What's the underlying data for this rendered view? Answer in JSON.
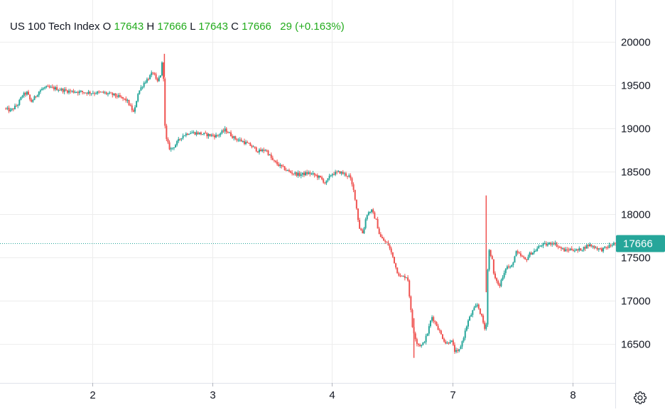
{
  "legend": {
    "symbol": "US 100 Tech Index",
    "open_label": "O",
    "open": "17643",
    "high_label": "H",
    "high": "17666",
    "low_label": "L",
    "low": "17643",
    "close_label": "C",
    "close": "17666",
    "change": "29",
    "change_pct": "(+0.163%)"
  },
  "last_price_label": "17666",
  "icons": {
    "settings": "gear-icon"
  },
  "colors": {
    "up": "#26a69a",
    "down": "#ef5350",
    "legend_value": "#22ab1c",
    "grid": "#ededed",
    "price_tag": "#26a69a"
  },
  "chart_data": {
    "type": "candlestick",
    "ylim": [
      16050,
      20450
    ],
    "y_ticks": [
      20000,
      19500,
      19000,
      18500,
      18000,
      17500,
      17000,
      16500
    ],
    "y_tick_labels": [
      "20000",
      "19500",
      "19000",
      "18500",
      "18000",
      "17500",
      "17000",
      "16500"
    ],
    "x_ticks": [
      {
        "label": "2",
        "at": 1.0
      },
      {
        "label": "3",
        "at": 2.0
      },
      {
        "label": "4",
        "at": 3.0
      },
      {
        "label": "7",
        "at": 4.0
      },
      {
        "label": "8",
        "at": 5.0
      }
    ],
    "x_range": [
      0.28,
      5.36
    ],
    "last_price": 17666,
    "price_path": [
      [
        0.28,
        19230
      ],
      [
        0.33,
        19200
      ],
      [
        0.39,
        19270
      ],
      [
        0.43,
        19380
      ],
      [
        0.47,
        19410
      ],
      [
        0.5,
        19300
      ],
      [
        0.53,
        19350
      ],
      [
        0.57,
        19430
      ],
      [
        0.62,
        19470
      ],
      [
        0.7,
        19460
      ],
      [
        0.8,
        19430
      ],
      [
        0.9,
        19420
      ],
      [
        1.0,
        19410
      ],
      [
        1.1,
        19410
      ],
      [
        1.2,
        19380
      ],
      [
        1.3,
        19320
      ],
      [
        1.36,
        19170
      ],
      [
        1.39,
        19400
      ],
      [
        1.44,
        19520
      ],
      [
        1.48,
        19580
      ],
      [
        1.52,
        19650
      ],
      [
        1.55,
        19520
      ],
      [
        1.58,
        19620
      ],
      [
        1.6,
        19820
      ],
      [
        1.62,
        18900
      ],
      [
        1.66,
        18750
      ],
      [
        1.7,
        18800
      ],
      [
        1.76,
        18910
      ],
      [
        1.82,
        18950
      ],
      [
        1.9,
        18940
      ],
      [
        1.98,
        18920
      ],
      [
        2.05,
        18910
      ],
      [
        2.12,
        18980
      ],
      [
        2.2,
        18880
      ],
      [
        2.26,
        18850
      ],
      [
        2.33,
        18800
      ],
      [
        2.4,
        18730
      ],
      [
        2.46,
        18750
      ],
      [
        2.52,
        18620
      ],
      [
        2.58,
        18560
      ],
      [
        2.66,
        18490
      ],
      [
        2.74,
        18460
      ],
      [
        2.82,
        18480
      ],
      [
        2.88,
        18450
      ],
      [
        2.92,
        18420
      ],
      [
        2.96,
        18360
      ],
      [
        3.01,
        18470
      ],
      [
        3.08,
        18490
      ],
      [
        3.16,
        18440
      ],
      [
        3.2,
        18240
      ],
      [
        3.24,
        17850
      ],
      [
        3.27,
        17780
      ],
      [
        3.3,
        18000
      ],
      [
        3.34,
        18050
      ],
      [
        3.38,
        17930
      ],
      [
        3.41,
        17750
      ],
      [
        3.44,
        17700
      ],
      [
        3.48,
        17650
      ],
      [
        3.52,
        17500
      ],
      [
        3.55,
        17350
      ],
      [
        3.58,
        17280
      ],
      [
        3.64,
        17280
      ],
      [
        3.68,
        16700
      ],
      [
        3.72,
        16500
      ],
      [
        3.76,
        16480
      ],
      [
        3.8,
        16600
      ],
      [
        3.84,
        16820
      ],
      [
        3.88,
        16720
      ],
      [
        3.92,
        16600
      ],
      [
        3.96,
        16500
      ],
      [
        4.0,
        16550
      ],
      [
        4.03,
        16420
      ],
      [
        4.06,
        16400
      ],
      [
        4.1,
        16560
      ],
      [
        4.14,
        16760
      ],
      [
        4.18,
        16880
      ],
      [
        4.22,
        16960
      ],
      [
        4.26,
        16790
      ],
      [
        4.29,
        16620
      ],
      [
        4.31,
        17610
      ],
      [
        4.34,
        17500
      ],
      [
        4.36,
        17250
      ],
      [
        4.38,
        17240
      ],
      [
        4.4,
        17150
      ],
      [
        4.42,
        17250
      ],
      [
        4.46,
        17400
      ],
      [
        4.5,
        17380
      ],
      [
        4.54,
        17560
      ],
      [
        4.58,
        17520
      ],
      [
        4.62,
        17470
      ],
      [
        4.66,
        17550
      ],
      [
        4.7,
        17580
      ],
      [
        4.75,
        17650
      ],
      [
        4.8,
        17650
      ],
      [
        4.85,
        17680
      ],
      [
        4.9,
        17620
      ],
      [
        4.95,
        17580
      ],
      [
        5.0,
        17600
      ],
      [
        5.05,
        17580
      ],
      [
        5.1,
        17610
      ],
      [
        5.15,
        17650
      ],
      [
        5.2,
        17620
      ],
      [
        5.25,
        17590
      ],
      [
        5.3,
        17620
      ],
      [
        5.36,
        17666
      ]
    ]
  }
}
